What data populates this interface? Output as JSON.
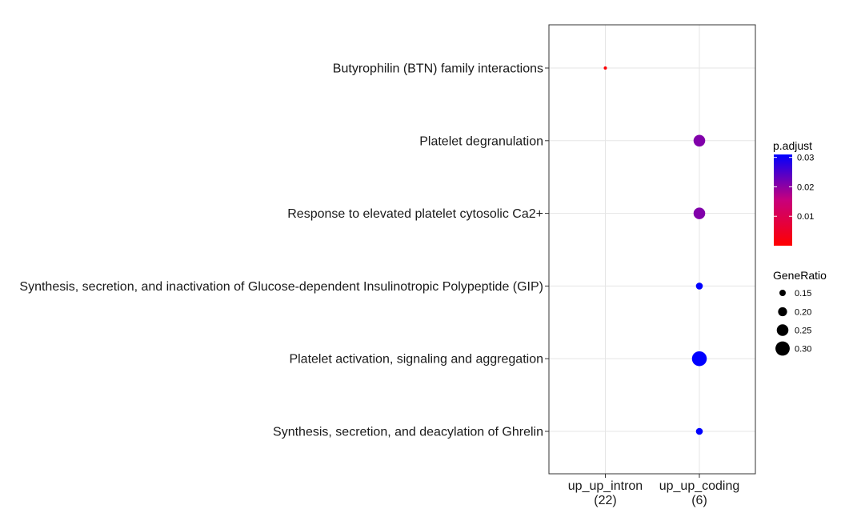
{
  "chart_data": {
    "type": "scatter",
    "subtype": "dot-plot",
    "categories_y": [
      "Butyrophilin (BTN) family interactions",
      "Platelet degranulation",
      "Response to elevated platelet cytosolic Ca2+",
      "Synthesis, secretion, and inactivation of Glucose-dependent Insulinotropic Polypeptide (GIP)",
      "Platelet activation, signaling and aggregation",
      "Synthesis, secretion, and deacylation of Ghrelin"
    ],
    "categories_x": [
      {
        "name": "up_up_intron",
        "count": "(22)"
      },
      {
        "name": "up_up_coding",
        "count": "(6)"
      }
    ],
    "points": [
      {
        "x": "up_up_intron",
        "y": "Butyrophilin (BTN) family interactions",
        "gene_ratio": 0.09,
        "p_adjust": 0.0005
      },
      {
        "x": "up_up_coding",
        "y": "Platelet degranulation",
        "gene_ratio": 0.25,
        "p_adjust": 0.021
      },
      {
        "x": "up_up_coding",
        "y": "Response to elevated platelet cytosolic Ca2+",
        "gene_ratio": 0.25,
        "p_adjust": 0.021
      },
      {
        "x": "up_up_coding",
        "y": "Synthesis, secretion, and inactivation of Glucose-dependent Insulinotropic Polypeptide (GIP)",
        "gene_ratio": 0.16,
        "p_adjust": 0.031
      },
      {
        "x": "up_up_coding",
        "y": "Platelet activation, signaling and aggregation",
        "gene_ratio": 0.31,
        "p_adjust": 0.031
      },
      {
        "x": "up_up_coding",
        "y": "Synthesis, secretion, and deacylation of Ghrelin",
        "gene_ratio": 0.16,
        "p_adjust": 0.031
      }
    ],
    "color_legend": {
      "title": "p.adjust",
      "range": [
        0.0,
        0.031
      ],
      "ticks": [
        0.01,
        0.02,
        0.03
      ],
      "tick_labels": [
        "0.01",
        "0.02",
        "0.03"
      ],
      "low_color": "#ff0000",
      "high_color": "#0000ff"
    },
    "size_legend": {
      "title": "GeneRatio",
      "values": [
        0.15,
        0.2,
        0.25,
        0.3
      ],
      "labels": [
        "0.15",
        "0.20",
        "0.25",
        "0.30"
      ]
    },
    "grid": true,
    "legend_position": "right"
  }
}
